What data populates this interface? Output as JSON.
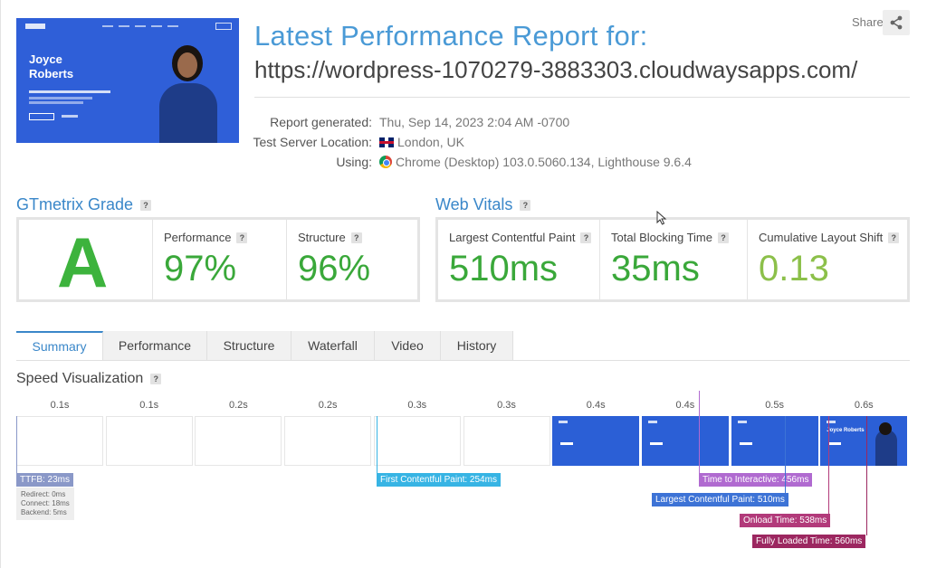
{
  "header": {
    "title": "Latest Performance Report for:",
    "url": "https://wordpress-1070279-3883303.cloudwaysapps.com/",
    "share_label": "Share",
    "thumbnail": {
      "name_line1": "Joyce",
      "name_line2": "Roberts"
    }
  },
  "meta": {
    "generated_label": "Report generated:",
    "generated_value": "Thu, Sep 14, 2023 2:04 AM -0700",
    "location_label": "Test Server Location:",
    "location_value": "London, UK",
    "using_label": "Using:",
    "using_value": "Chrome (Desktop) 103.0.5060.134, Lighthouse 9.6.4"
  },
  "grade": {
    "title": "GTmetrix Grade",
    "letter": "A",
    "performance_label": "Performance",
    "performance_value": "97%",
    "structure_label": "Structure",
    "structure_value": "96%"
  },
  "vitals": {
    "title": "Web Vitals",
    "lcp_label": "Largest Contentful Paint",
    "lcp_value": "510ms",
    "tbt_label": "Total Blocking Time",
    "tbt_value": "35ms",
    "cls_label": "Cumulative Layout Shift",
    "cls_value": "0.13"
  },
  "tabs": [
    "Summary",
    "Performance",
    "Structure",
    "Waterfall",
    "Video",
    "History"
  ],
  "speed": {
    "title": "Speed Visualization",
    "times": [
      "0.1s",
      "0.1s",
      "0.2s",
      "0.2s",
      "0.3s",
      "0.3s",
      "0.4s",
      "0.4s",
      "0.5s",
      "0.6s"
    ],
    "markers": {
      "ttfb": "TTFB: 23ms",
      "redirect": "Redirect: 0ms",
      "connect": "Connect: 18ms",
      "backend": "Backend: 5ms",
      "fcp": "First Contentful Paint: 254ms",
      "tti": "Time to Interactive: 456ms",
      "lcp": "Largest Contentful Paint: 510ms",
      "onload": "Onload Time: 538ms",
      "fully": "Fully Loaded Time: 560ms"
    }
  },
  "colors": {
    "accent": "#3a87c9",
    "grade_green": "#3db33d",
    "cls_green": "#8cc04a",
    "ttfb": "#8a98c8",
    "fcp": "#37b4e4",
    "tti": "#b06ad0",
    "lcp": "#3d73d6",
    "onload": "#b23a7a",
    "fully": "#9c2760"
  },
  "icons": {
    "share": "share-icon",
    "help": "question-icon",
    "flag": "uk-flag-icon",
    "browser": "chrome-icon"
  }
}
